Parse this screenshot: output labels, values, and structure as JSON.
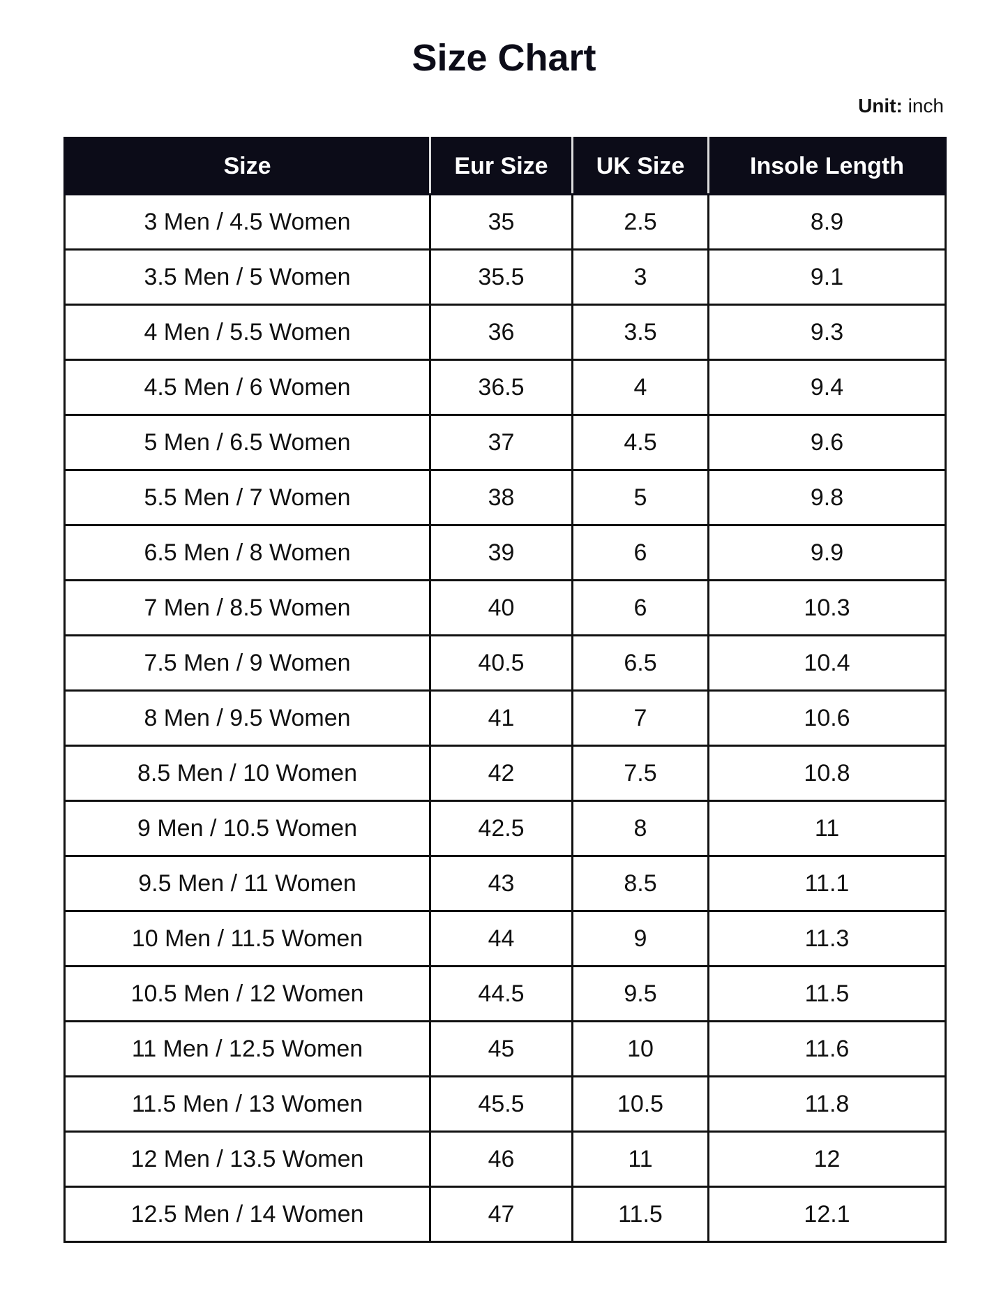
{
  "title": "Size Chart",
  "unit": {
    "label": "Unit:",
    "value": "inch"
  },
  "table": {
    "headers": [
      "Size",
      "Eur Size",
      "UK Size",
      "Insole Length"
    ],
    "rows": [
      [
        "3 Men / 4.5 Women",
        "35",
        "2.5",
        "8.9"
      ],
      [
        "3.5 Men / 5 Women",
        "35.5",
        "3",
        "9.1"
      ],
      [
        "4 Men / 5.5 Women",
        "36",
        "3.5",
        "9.3"
      ],
      [
        "4.5 Men / 6 Women",
        "36.5",
        "4",
        "9.4"
      ],
      [
        "5 Men / 6.5 Women",
        "37",
        "4.5",
        "9.6"
      ],
      [
        "5.5 Men / 7 Women",
        "38",
        "5",
        "9.8"
      ],
      [
        "6.5 Men / 8 Women",
        "39",
        "6",
        "9.9"
      ],
      [
        "7 Men / 8.5 Women",
        "40",
        "6",
        "10.3"
      ],
      [
        "7.5 Men / 9 Women",
        "40.5",
        "6.5",
        "10.4"
      ],
      [
        "8 Men / 9.5 Women",
        "41",
        "7",
        "10.6"
      ],
      [
        "8.5 Men / 10 Women",
        "42",
        "7.5",
        "10.8"
      ],
      [
        "9 Men / 10.5 Women",
        "42.5",
        "8",
        "11"
      ],
      [
        "9.5 Men / 11 Women",
        "43",
        "8.5",
        "11.1"
      ],
      [
        "10 Men / 11.5 Women",
        "44",
        "9",
        "11.3"
      ],
      [
        "10.5 Men / 12 Women",
        "44.5",
        "9.5",
        "11.5"
      ],
      [
        "11 Men / 12.5 Women",
        "45",
        "10",
        "11.6"
      ],
      [
        "11.5 Men / 13 Women",
        "45.5",
        "10.5",
        "11.8"
      ],
      [
        "12 Men / 13.5 Women",
        "46",
        "11",
        "12"
      ],
      [
        "12.5 Men / 14 Women",
        "47",
        "11.5",
        "12.1"
      ]
    ]
  },
  "colors": {
    "header_bg": "#0c0c18",
    "header_text": "#ffffff",
    "border": "#111111"
  }
}
